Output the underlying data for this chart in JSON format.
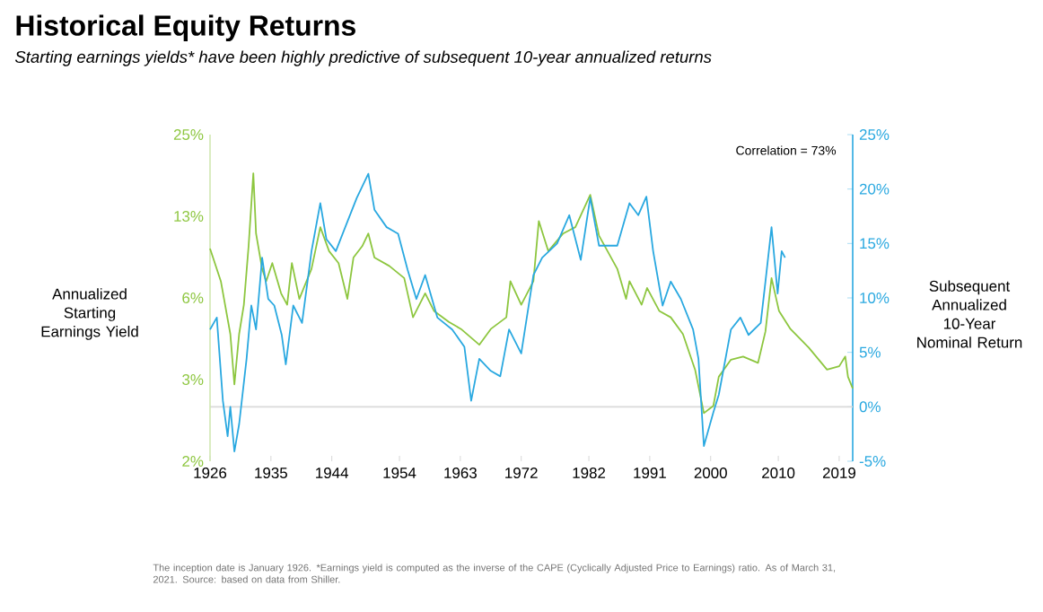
{
  "chart_data": {
    "type": "line",
    "title": "Historical Equity Returns",
    "subtitle": "Starting earnings yields* have been highly predictive of subsequent 10-year annualized returns",
    "ylabel": "Annualized Starting Earnings Yield",
    "y2label": "Subsequent Annualized 10-Year Nominal Return",
    "annotations": [
      "Correlation = 73%",
      "The inception date is January 1926. *Earnings yield is computed as the inverse of the CAPE (Cyclically Adjusted Price to Earnings) ratio. As of March 31, 2021. Source: based on data from Shiller."
    ],
    "log": "y",
    "xlim": [
      1926,
      2021
    ],
    "xticks": [
      1926,
      1935,
      1944,
      1954,
      1963,
      1972,
      1982,
      1991,
      2000,
      2010,
      2019
    ],
    "ylim": [
      1.5625,
      25
    ],
    "yticks": [
      {
        "value": 1.5625,
        "label": "2%"
      },
      {
        "value": 3.125,
        "label": "3%"
      },
      {
        "value": 6.25,
        "label": "6%"
      },
      {
        "value": 12.5,
        "label": "13%"
      },
      {
        "value": 25,
        "label": "25%"
      }
    ],
    "y2lim": [
      -5,
      25
    ],
    "y2ticks": [
      {
        "value": -5,
        "label": "-5%"
      },
      {
        "value": 0,
        "label": "0%"
      },
      {
        "value": 5,
        "label": "5%"
      },
      {
        "value": 10,
        "label": "10%"
      },
      {
        "value": 15,
        "label": "15%"
      },
      {
        "value": 20,
        "label": "20%"
      },
      {
        "value": 25,
        "label": "25%"
      }
    ],
    "ref_lines": [
      {
        "axis": "y2",
        "value": 0,
        "color": "#d9d9d9"
      }
    ],
    "series": [
      {
        "color": "#8dc63f",
        "axis": "y",
        "x": [
          1926,
          1927.6,
          1929.0,
          1929.6,
          1930.3,
          1931.0,
          1931.7,
          1932.4,
          1932.8,
          1933.7,
          1934.3,
          1935.2,
          1936.5,
          1937.4,
          1938.1,
          1939.2,
          1941.0,
          1942.3,
          1943.6,
          1945.0,
          1946.3,
          1947.2,
          1948.5,
          1949.4,
          1950.3,
          1952.5,
          1954.7,
          1956.0,
          1957.8,
          1959.1,
          1961.3,
          1963.1,
          1965.8,
          1967.5,
          1969.8,
          1970.4,
          1972.0,
          1973.8,
          1974.6,
          1976.0,
          1978.2,
          1980.0,
          1982.2,
          1983.5,
          1986.2,
          1987.5,
          1988.0,
          1989.8,
          1990.6,
          1992.4,
          1994.1,
          1995.9,
          1997.7,
          1999.0,
          2000.4,
          2001.2,
          2003.0,
          2004.8,
          2007.0,
          2008.1,
          2009.0,
          2010.1,
          2011.8,
          2014.5,
          2017.2,
          2019.0,
          2019.9,
          2020.3,
          2021.0
        ],
        "values": [
          9.5,
          7.2,
          4.6,
          3.0,
          4.6,
          5.9,
          9.7,
          18.0,
          10.8,
          8.0,
          7.2,
          8.4,
          6.5,
          5.9,
          8.4,
          6.2,
          8.0,
          11.4,
          9.3,
          8.4,
          6.2,
          8.8,
          9.7,
          10.8,
          8.8,
          8.2,
          7.4,
          5.3,
          6.5,
          5.6,
          5.1,
          4.8,
          4.2,
          4.8,
          5.3,
          7.2,
          5.9,
          7.2,
          12.0,
          9.3,
          10.8,
          11.4,
          15.0,
          10.6,
          8.0,
          6.2,
          7.2,
          5.9,
          6.8,
          5.6,
          5.3,
          4.6,
          3.4,
          2.35,
          2.5,
          3.2,
          3.7,
          3.8,
          3.6,
          4.7,
          7.4,
          5.6,
          4.8,
          4.1,
          3.4,
          3.5,
          3.8,
          3.2,
          2.9
        ]
      },
      {
        "color": "#29a8e0",
        "axis": "y2",
        "x": [
          1926,
          1927.0,
          1927.9,
          1928.6,
          1929.0,
          1929.6,
          1930.3,
          1931.4,
          1932.1,
          1932.8,
          1933.7,
          1934.6,
          1935.5,
          1936.6,
          1937.2,
          1938.3,
          1939.6,
          1941.0,
          1942.3,
          1943.2,
          1944.6,
          1946.3,
          1947.7,
          1949.4,
          1950.3,
          1952.1,
          1953.8,
          1955.2,
          1956.5,
          1957.8,
          1959.6,
          1961.8,
          1963.6,
          1964.6,
          1965.8,
          1967.5,
          1968.9,
          1970.2,
          1972.0,
          1973.8,
          1975.1,
          1977.3,
          1979.1,
          1980.8,
          1982.2,
          1983.5,
          1986.2,
          1988.0,
          1989.3,
          1990.5,
          1991.5,
          1992.9,
          1994.1,
          1995.6,
          1997.4,
          1998.2,
          1999.0,
          2000.4,
          2001.2,
          2003.0,
          2004.4,
          2005.6,
          2007.4,
          2008.1,
          2009.0,
          2009.9,
          2010.5,
          2011.0
        ],
        "values": [
          7.1,
          8.2,
          0.55,
          -2.7,
          0.0,
          -4.1,
          -1.6,
          4.4,
          9.3,
          7.1,
          13.7,
          9.9,
          9.3,
          6.6,
          3.9,
          9.3,
          7.7,
          14.3,
          18.7,
          15.4,
          14.3,
          17.0,
          19.2,
          21.4,
          18.1,
          16.5,
          15.9,
          12.6,
          9.9,
          12.1,
          8.2,
          7.1,
          5.5,
          0.55,
          4.4,
          3.3,
          2.8,
          7.1,
          4.9,
          12.1,
          13.7,
          15.0,
          17.6,
          13.5,
          19.2,
          14.8,
          14.8,
          18.7,
          17.6,
          19.3,
          14.3,
          9.3,
          11.5,
          9.9,
          7.1,
          4.4,
          -3.6,
          -0.5,
          1.1,
          7.1,
          8.2,
          6.6,
          7.7,
          11.5,
          16.5,
          10.4,
          14.3,
          13.7
        ]
      }
    ]
  }
}
